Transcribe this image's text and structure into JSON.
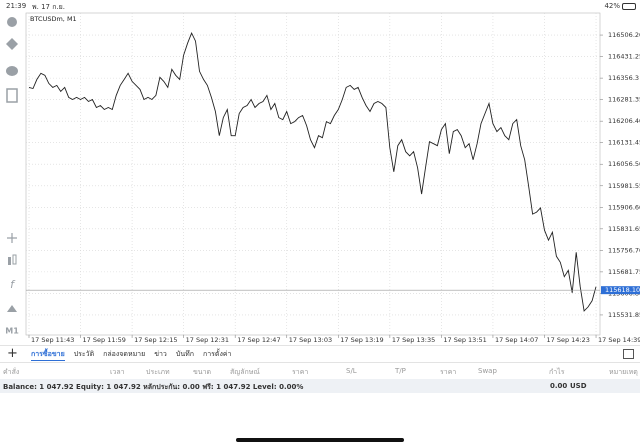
{
  "status_bar": {
    "time": "21:39",
    "date": "พ. 17 ก.ย.",
    "battery": "42%"
  },
  "toolbar": {
    "timeframe": "M1"
  },
  "chart_data": {
    "type": "line",
    "title": "BTCUSDm, M1",
    "color": "#222222",
    "grid": true,
    "values": [
      116324,
      116320,
      116352,
      116373,
      116366,
      116338,
      116324,
      116331,
      116310,
      116324,
      116289,
      116282,
      116289,
      116282,
      116289,
      116275,
      116282,
      116254,
      116261,
      116247,
      116254,
      116247,
      116296,
      116331,
      116352,
      116373,
      116345,
      116331,
      116317,
      116282,
      116289,
      116282,
      116296,
      116359,
      116345,
      116324,
      116387,
      116366,
      116352,
      116436,
      116478,
      116513,
      116485,
      116380,
      116352,
      116331,
      116289,
      116240,
      116156,
      116219,
      116247,
      116156,
      116156,
      116233,
      116254,
      116261,
      116282,
      116254,
      116268,
      116275,
      116296,
      116247,
      116268,
      116219,
      116212,
      116240,
      116198,
      116205,
      116219,
      116226,
      116191,
      116142,
      116114,
      116156,
      116149,
      116205,
      116198,
      116226,
      116247,
      116282,
      116324,
      116331,
      116317,
      116324,
      116289,
      116261,
      116240,
      116268,
      116275,
      116268,
      116254,
      116114,
      116030,
      116121,
      116142,
      116100,
      116086,
      116100,
      116044,
      115953,
      116044,
      116135,
      116128,
      116121,
      116177,
      116198,
      116093,
      116170,
      116177,
      116156,
      116114,
      116128,
      116072,
      116128,
      116198,
      116233,
      116268,
      116198,
      116170,
      116184,
      116156,
      116142,
      116198,
      116212,
      116121,
      116072,
      115981,
      115883,
      115890,
      115904,
      115827,
      115792,
      115820,
      115736,
      115715,
      115665,
      115687,
      115609,
      115750,
      115630,
      115546,
      115560,
      115581,
      115630
    ],
    "xlim": [
      0,
      144
    ],
    "xticks": [
      {
        "value": 0,
        "label": "17 Sep 11:43"
      },
      {
        "value": 13,
        "label": "17 Sep 11:59"
      },
      {
        "value": 26,
        "label": "17 Sep 12:15"
      },
      {
        "value": 39,
        "label": "17 Sep 12:31"
      },
      {
        "value": 52,
        "label": "17 Sep 12:47"
      },
      {
        "value": 65,
        "label": "17 Sep 13:03"
      },
      {
        "value": 78,
        "label": "17 Sep 13:19"
      },
      {
        "value": 91,
        "label": "17 Sep 13:35"
      },
      {
        "value": 104,
        "label": "17 Sep 13:51"
      },
      {
        "value": 117,
        "label": "17 Sep 14:07"
      },
      {
        "value": 130,
        "label": "17 Sep 14:23"
      },
      {
        "value": 143,
        "label": "17 Sep 14:39"
      }
    ],
    "ylim": [
      115462,
      116583
    ],
    "yticks": [
      {
        "value": 116506.2,
        "label": "116506.20"
      },
      {
        "value": 116431.25,
        "label": "116431.25"
      },
      116356.3,
      {
        "value": 116281.35,
        "label": "116281.35"
      },
      {
        "value": 116206.4,
        "label": "116206.40"
      },
      {
        "value": 116131.45,
        "label": "116131.45"
      },
      {
        "value": 116056.5,
        "label": "116056.50"
      },
      {
        "value": 115981.55,
        "label": "115981.55"
      },
      {
        "value": 115906.6,
        "label": "115906.60"
      },
      {
        "value": 115831.65,
        "label": "115831.65"
      },
      {
        "value": 115756.7,
        "label": "115756.70"
      },
      {
        "value": 115681.75,
        "label": "115681.75"
      },
      {
        "value": 115606.8,
        "label": "115606.80"
      },
      {
        "value": 115531.85,
        "label": "115531.85"
      }
    ],
    "current_price": {
      "value": 115618.1,
      "label": "115618.10"
    }
  },
  "tabs": [
    "การซื้อขาย",
    "ประวัติ",
    "กล่องจดหมาย",
    "ข่าว",
    "บันทึก",
    "การตั้งค่า"
  ],
  "active_tab": 0,
  "table_header": [
    "คำสั่ง",
    "เวลา",
    "ประเภท",
    "ขนาด",
    "สัญลักษณ์",
    "ราคา",
    "S/L",
    "T/P",
    "ราคา",
    "Swap",
    "กำไร",
    "หมายเหตุ"
  ],
  "account": {
    "summary": "Balance: 1 047.92 Equity: 1 047.92 หลักประกัน: 0.00 ฟรี: 1 047.92 Level: 0.00%",
    "profit": "0.00",
    "currency": "USD"
  }
}
